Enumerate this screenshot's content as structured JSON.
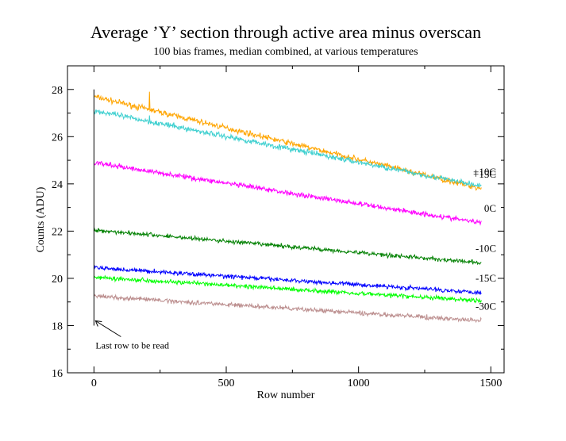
{
  "chart_data": {
    "type": "line",
    "title": "Average ’Y’ section through active area minus overscan",
    "subtitle": "100 bias frames, median combined, at various temperatures",
    "xlabel": "Row number",
    "ylabel": "Counts (ADU)",
    "xlim": [
      -100,
      1550
    ],
    "ylim": [
      16,
      29
    ],
    "x_ticks": [
      0,
      500,
      1000,
      1500
    ],
    "x_tick_labels": [
      "0",
      "500",
      "1000",
      "1500"
    ],
    "y_ticks": [
      16,
      18,
      20,
      22,
      24,
      26,
      28
    ],
    "y_tick_labels": [
      "16",
      "18",
      "20",
      "22",
      "24",
      "26",
      "28"
    ],
    "grid": false,
    "legend": "none",
    "x_end": 1465,
    "series": [
      {
        "name": "+15C",
        "color": "#ffa500",
        "y_start": 27.7,
        "y_end": 23.8,
        "noise": 0.09,
        "spike_x": 210,
        "spike_y": 27.9
      },
      {
        "name": "+10C",
        "color": "#40d0d0",
        "y_start": 27.1,
        "y_end": 23.9,
        "noise": 0.09,
        "spike_x": 210,
        "spike_y": 26.9
      },
      {
        "name": "0C",
        "color": "#ff00ff",
        "y_start": 24.9,
        "y_end": 22.35,
        "noise": 0.08
      },
      {
        "name": "-10C",
        "color": "#008000",
        "y_start": 22.05,
        "y_end": 20.65,
        "noise": 0.07
      },
      {
        "name": "-15C",
        "color": "#0000ff",
        "y_start": 20.45,
        "y_end": 19.4,
        "noise": 0.07
      },
      {
        "name": "",
        "color": "#00ff00",
        "y_start": 20.05,
        "y_end": 19.05,
        "noise": 0.07
      },
      {
        "name": "-30C",
        "color": "#bc8f8f",
        "y_start": 19.25,
        "y_end": 18.2,
        "noise": 0.07
      }
    ],
    "annotations": [
      {
        "text": "Last row to be read",
        "x": 0,
        "y": 18.2
      }
    ]
  }
}
